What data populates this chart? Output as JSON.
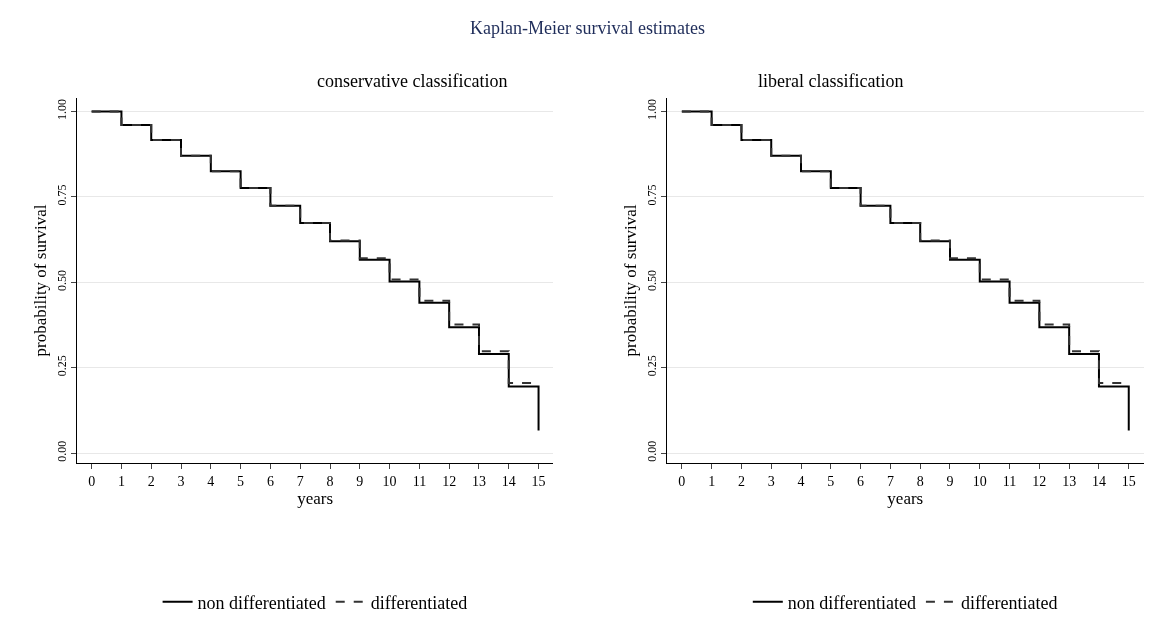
{
  "chart_data": [
    {
      "type": "step",
      "title": "conservative classification",
      "xlabel": "years",
      "ylabel": "probability of survival",
      "annotations": [
        "Kaplan-Meier survival estimates"
      ],
      "x": [
        0,
        1,
        2,
        3,
        4,
        5,
        6,
        7,
        8,
        9,
        10,
        11,
        12,
        13,
        14,
        15
      ],
      "series": [
        {
          "name": "non differentiated",
          "color": "#000000",
          "line_style": "solid",
          "values": [
            1.0,
            0.96,
            0.916,
            0.87,
            0.825,
            0.776,
            0.724,
            0.673,
            0.62,
            0.566,
            0.502,
            0.44,
            0.368,
            0.29,
            0.195,
            0.066
          ]
        },
        {
          "name": "differentiated",
          "color": "#333333",
          "line_style": "dashed",
          "values": [
            1.0,
            0.96,
            0.916,
            0.87,
            0.825,
            0.776,
            0.724,
            0.673,
            0.622,
            0.57,
            0.508,
            0.446,
            0.376,
            0.298,
            0.205,
            0.205
          ]
        }
      ],
      "xlim": [
        -0.5,
        15.5
      ],
      "xticks": [
        0,
        1,
        2,
        3,
        4,
        5,
        6,
        7,
        8,
        9,
        10,
        11,
        12,
        13,
        14,
        15
      ],
      "ylim": [
        -0.03,
        1.04
      ],
      "yticks": [
        {
          "value": 0,
          "label": "0.00"
        },
        {
          "value": 0.25,
          "label": "0.25"
        },
        {
          "value": 0.5,
          "label": "0.50"
        },
        {
          "value": 0.75,
          "label": "0.75"
        },
        {
          "value": 1,
          "label": "1.00"
        }
      ],
      "grid": "y",
      "legend": "bottom",
      "marker": "none"
    },
    {
      "type": "step",
      "title": "liberal classification",
      "xlabel": "years",
      "ylabel": "probability of survival",
      "x": [
        0,
        1,
        2,
        3,
        4,
        5,
        6,
        7,
        8,
        9,
        10,
        11,
        12,
        13,
        14,
        15
      ],
      "series": [
        {
          "name": "non differentiated",
          "color": "#000000",
          "line_style": "solid",
          "values": [
            1.0,
            0.96,
            0.916,
            0.87,
            0.825,
            0.776,
            0.724,
            0.673,
            0.62,
            0.566,
            0.502,
            0.44,
            0.368,
            0.29,
            0.195,
            0.066
          ]
        },
        {
          "name": "differentiated",
          "color": "#333333",
          "line_style": "dashed",
          "values": [
            1.0,
            0.96,
            0.916,
            0.87,
            0.825,
            0.776,
            0.724,
            0.673,
            0.622,
            0.57,
            0.508,
            0.446,
            0.376,
            0.298,
            0.205,
            0.205
          ]
        }
      ],
      "xlim": [
        -0.5,
        15.5
      ],
      "xticks": [
        0,
        1,
        2,
        3,
        4,
        5,
        6,
        7,
        8,
        9,
        10,
        11,
        12,
        13,
        14,
        15
      ],
      "ylim": [
        -0.03,
        1.04
      ],
      "yticks": [
        {
          "value": 0,
          "label": "0.00"
        },
        {
          "value": 0.25,
          "label": "0.25"
        },
        {
          "value": 0.5,
          "label": "0.50"
        },
        {
          "value": 0.75,
          "label": "0.75"
        },
        {
          "value": 1,
          "label": "1.00"
        }
      ],
      "grid": "y",
      "legend": "bottom",
      "marker": "none"
    }
  ]
}
